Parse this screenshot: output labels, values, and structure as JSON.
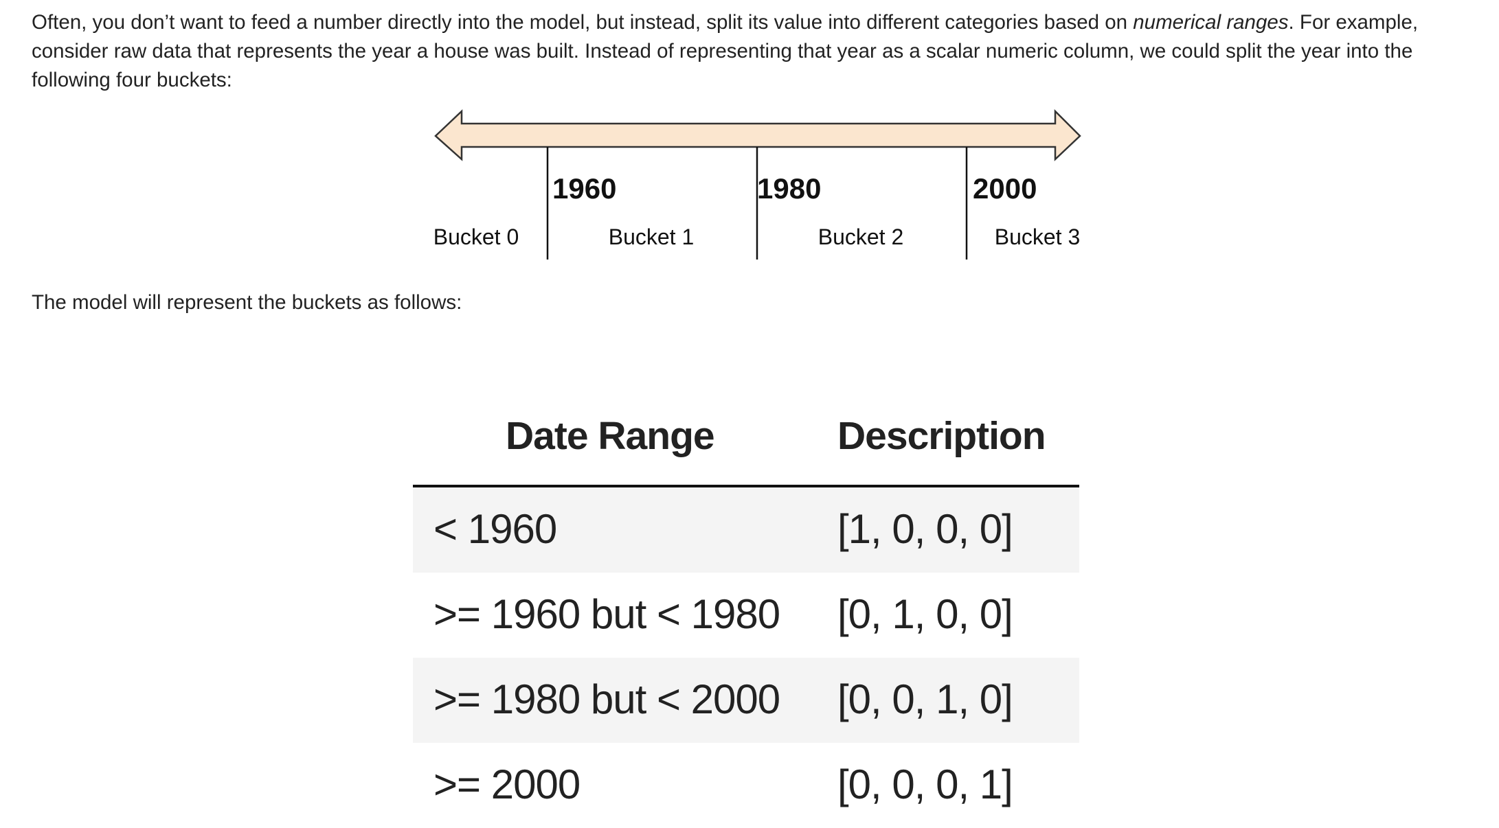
{
  "intro": {
    "text_before": "Often, you don’t want to feed a number directly into the model, but instead, split its value into different categories based on ",
    "text_italic": "numerical ranges",
    "text_after": ". For example, consider raw data that represents the year a house was built. Instead of representing that year as a scalar numeric column, we could split the year into the following four buckets:"
  },
  "timeline": {
    "fill_color": "#fbe6cf",
    "boundaries": [
      "1960",
      "1980",
      "2000"
    ],
    "buckets": [
      "Bucket 0",
      "Bucket 1",
      "Bucket 2",
      "Bucket 3"
    ]
  },
  "outro": "The model will represent the buckets as follows:",
  "table": {
    "headers": [
      "Date Range",
      "Description"
    ],
    "rows": [
      [
        "< 1960",
        "[1, 0, 0, 0]"
      ],
      [
        ">= 1960 but < 1980",
        "[0, 1, 0, 0]"
      ],
      [
        ">= 1980 but < 2000",
        "[0, 0, 1, 0]"
      ],
      [
        ">= 2000",
        "[0, 0, 0, 1]"
      ]
    ],
    "shade_color": "#f4f4f4"
  }
}
